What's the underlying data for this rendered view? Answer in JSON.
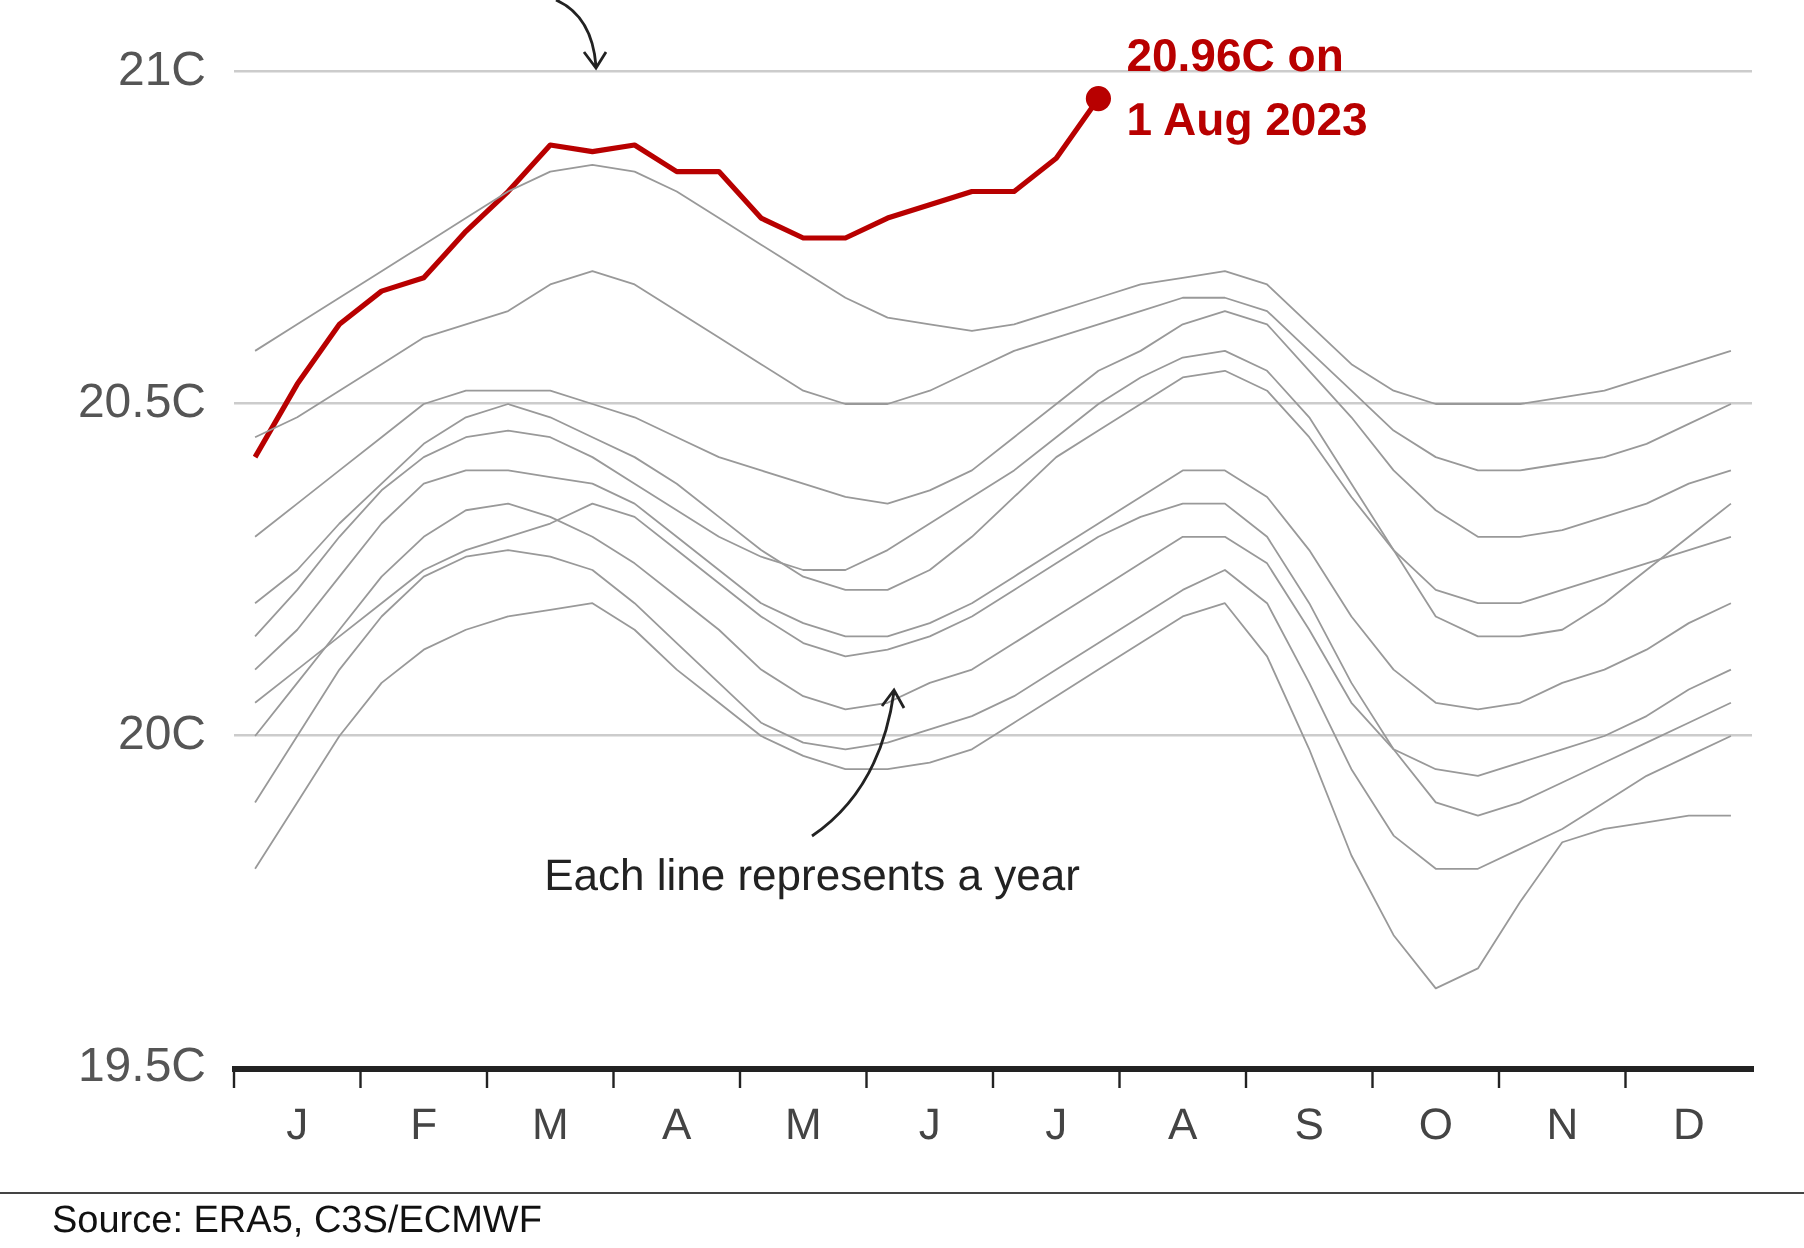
{
  "chart_data": {
    "type": "line",
    "categories": [
      null,
      "J",
      null,
      null,
      "F",
      null,
      null,
      "M",
      null,
      null,
      "A",
      null,
      null,
      "M",
      null,
      null,
      "J",
      null,
      null,
      "J",
      null,
      null,
      "A",
      null,
      null,
      "S",
      null,
      null,
      "O",
      null,
      null,
      "N",
      null,
      null,
      "D",
      null
    ],
    "ylim": [
      19.5,
      21
    ],
    "yticks": [
      {
        "value": 19.5,
        "label": "19.5C"
      },
      {
        "value": 20,
        "label": "20C"
      },
      {
        "value": 20.5,
        "label": "20.5C"
      },
      {
        "value": 21,
        "label": "21C"
      }
    ],
    "grid": "y",
    "marker": "none",
    "line_style": "solid",
    "series": [
      {
        "color": "#999999",
        "values": [
          20.58,
          20.62,
          20.66,
          20.7,
          20.74,
          20.78,
          20.82,
          20.85,
          20.86,
          20.85,
          20.82,
          20.78,
          20.74,
          20.7,
          20.66,
          20.63,
          20.62,
          20.61,
          20.62,
          20.64,
          20.66,
          20.68,
          20.69,
          20.7,
          20.68,
          20.62,
          20.56,
          20.52,
          20.5,
          20.5,
          20.5,
          20.51,
          20.52,
          20.54,
          20.56,
          20.58
        ]
      },
      {
        "color": "#999999",
        "values": [
          20.45,
          20.48,
          20.52,
          20.56,
          20.6,
          20.62,
          20.64,
          20.68,
          20.7,
          20.68,
          20.64,
          20.6,
          20.56,
          20.52,
          20.5,
          20.5,
          20.52,
          20.55,
          20.58,
          20.6,
          20.62,
          20.64,
          20.66,
          20.66,
          20.64,
          20.58,
          20.52,
          20.46,
          20.42,
          20.4,
          20.4,
          20.41,
          20.42,
          20.44,
          20.47,
          20.5
        ]
      },
      {
        "color": "#999999",
        "values": [
          20.3,
          20.35,
          20.4,
          20.45,
          20.5,
          20.52,
          20.52,
          20.52,
          20.5,
          20.48,
          20.45,
          20.42,
          20.4,
          20.38,
          20.36,
          20.35,
          20.37,
          20.4,
          20.45,
          20.5,
          20.55,
          20.58,
          20.62,
          20.64,
          20.62,
          20.55,
          20.48,
          20.4,
          20.34,
          20.3,
          20.3,
          20.31,
          20.33,
          20.35,
          20.38,
          20.4
        ]
      },
      {
        "color": "#999999",
        "values": [
          20.2,
          20.25,
          20.32,
          20.38,
          20.44,
          20.48,
          20.5,
          20.48,
          20.45,
          20.42,
          20.38,
          20.33,
          20.28,
          20.24,
          20.22,
          20.22,
          20.25,
          20.3,
          20.36,
          20.42,
          20.46,
          20.5,
          20.54,
          20.55,
          20.52,
          20.45,
          20.36,
          20.28,
          20.22,
          20.2,
          20.2,
          20.22,
          20.24,
          20.26,
          20.28,
          20.3
        ]
      },
      {
        "color": "#999999",
        "values": [
          20.1,
          20.16,
          20.24,
          20.32,
          20.38,
          20.4,
          20.4,
          20.39,
          20.38,
          20.35,
          20.3,
          20.25,
          20.2,
          20.17,
          20.15,
          20.15,
          20.17,
          20.2,
          20.24,
          20.28,
          20.32,
          20.36,
          20.4,
          20.4,
          20.36,
          20.28,
          20.18,
          20.1,
          20.05,
          20.04,
          20.05,
          20.08,
          20.1,
          20.13,
          20.17,
          20.2
        ]
      },
      {
        "color": "#999999",
        "values": [
          20,
          20.08,
          20.16,
          20.24,
          20.3,
          20.34,
          20.35,
          20.33,
          20.3,
          20.26,
          20.21,
          20.16,
          20.1,
          20.06,
          20.04,
          20.05,
          20.08,
          20.1,
          20.14,
          20.18,
          20.22,
          20.26,
          20.3,
          20.3,
          20.26,
          20.16,
          20.05,
          19.98,
          19.95,
          19.94,
          19.96,
          19.98,
          20,
          20.03,
          20.07,
          20.1
        ]
      },
      {
        "color": "#999999",
        "values": [
          19.9,
          20,
          20.1,
          20.18,
          20.24,
          20.27,
          20.28,
          20.27,
          20.25,
          20.2,
          20.14,
          20.08,
          20.02,
          19.99,
          19.98,
          19.99,
          20.01,
          20.03,
          20.06,
          20.1,
          20.14,
          20.18,
          20.22,
          20.25,
          20.2,
          20.08,
          19.95,
          19.85,
          19.8,
          19.8,
          19.83,
          19.86,
          19.9,
          19.94,
          19.97,
          20
        ]
      },
      {
        "color": "#999999",
        "values": [
          19.8,
          19.9,
          20,
          20.08,
          20.13,
          20.16,
          20.18,
          20.19,
          20.2,
          20.16,
          20.1,
          20.05,
          20,
          19.97,
          19.95,
          19.95,
          19.96,
          19.98,
          20.02,
          20.06,
          20.1,
          20.14,
          20.18,
          20.2,
          20.12,
          19.98,
          19.82,
          19.7,
          19.62,
          19.65,
          19.75,
          19.84,
          19.86,
          19.87,
          19.88,
          19.88
        ]
      },
      {
        "color": "#999999",
        "values": [
          20.15,
          20.22,
          20.3,
          20.37,
          20.42,
          20.45,
          20.46,
          20.45,
          20.42,
          20.38,
          20.34,
          20.3,
          20.27,
          20.25,
          20.25,
          20.28,
          20.32,
          20.36,
          20.4,
          20.45,
          20.5,
          20.54,
          20.57,
          20.58,
          20.55,
          20.48,
          20.38,
          20.28,
          20.18,
          20.15,
          20.15,
          20.16,
          20.2,
          20.25,
          20.3,
          20.35
        ]
      },
      {
        "color": "#999999",
        "values": [
          20.05,
          20.1,
          20.15,
          20.2,
          20.25,
          20.28,
          20.3,
          20.32,
          20.35,
          20.33,
          20.28,
          20.23,
          20.18,
          20.14,
          20.12,
          20.13,
          20.15,
          20.18,
          20.22,
          20.26,
          20.3,
          20.33,
          20.35,
          20.35,
          20.3,
          20.2,
          20.08,
          19.98,
          19.9,
          19.88,
          19.9,
          19.93,
          19.96,
          19.99,
          20.02,
          20.05
        ]
      },
      {
        "color": "#b80000",
        "values": [
          20.42,
          20.53,
          20.62,
          20.67,
          20.69,
          20.76,
          20.82,
          20.89,
          20.88,
          20.89,
          20.85,
          20.85,
          20.78,
          20.75,
          20.75,
          20.78,
          20.8,
          20.82,
          20.82,
          20.87,
          20.96,
          null,
          null,
          null,
          null,
          null,
          null,
          null,
          null,
          null,
          null,
          null,
          null,
          null,
          null,
          null
        ]
      }
    ],
    "annotations": [
      "20.96C on\n1 Aug 2023",
      "Each line represents a year",
      "Source: ERA5, C3S/ECMWF"
    ]
  }
}
